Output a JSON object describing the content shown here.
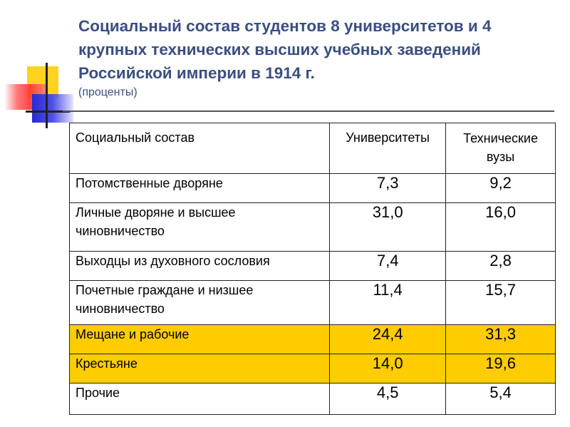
{
  "title": "Социальный состав студентов 8 университетов и 4 крупных технических высших учебных заведений Российской империи в 1914 г.",
  "subtitle": "(проценты)",
  "colors": {
    "title": "#3a4e80",
    "highlight": "#ffcc00"
  },
  "table": {
    "headers": [
      "Социальный состав",
      "Университеты",
      "Технические вузы"
    ],
    "rows": [
      {
        "label": "Потомственные дворяне",
        "universities": "7,3",
        "technical": "9,2",
        "highlighted": false
      },
      {
        "label": "Личные дворяне и высшее чиновничество",
        "universities": "31,0",
        "technical": "16,0",
        "highlighted": false
      },
      {
        "label": "Выходцы из духовного сословия",
        "universities": "7,4",
        "technical": "2,8",
        "highlighted": false
      },
      {
        "label": "Почетные граждане и низшее чиновничество",
        "universities": "11,4",
        "technical": "15,7",
        "highlighted": false
      },
      {
        "label": "Мещане и рабочие",
        "universities": "24,4",
        "technical": "31,3",
        "highlighted": true
      },
      {
        "label": "Крестьяне",
        "universities": "14,0",
        "technical": "19,6",
        "highlighted": true
      },
      {
        "label": "Прочие",
        "universities": "4,5",
        "technical": "5,4",
        "highlighted": false
      }
    ]
  }
}
